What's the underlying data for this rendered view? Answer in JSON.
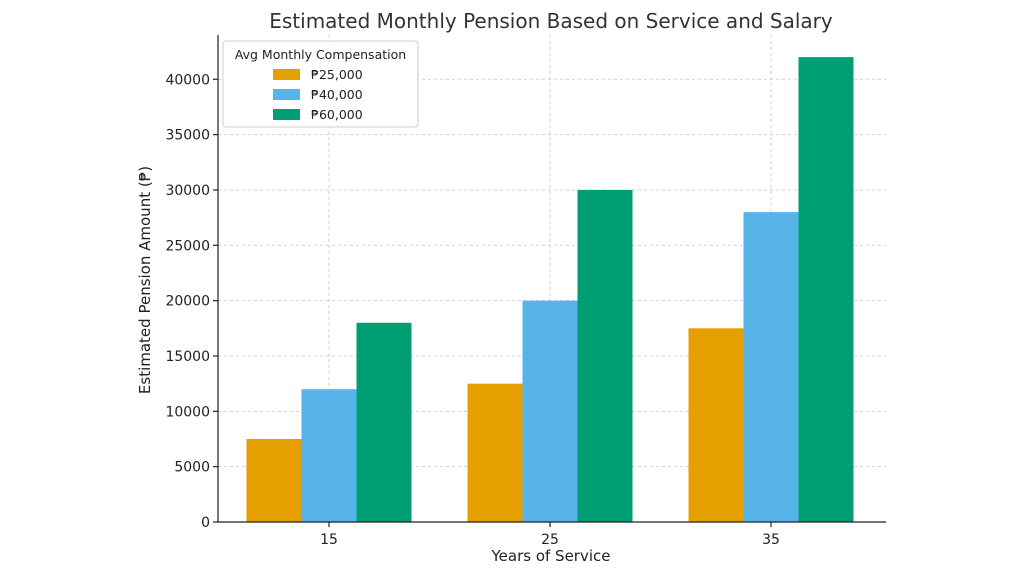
{
  "chart_data": {
    "type": "bar",
    "title": "Estimated Monthly Pension Based on Service and Salary",
    "xlabel": "Years of Service",
    "ylabel": "Estimated Pension Amount (₱)",
    "categories": [
      "15",
      "25",
      "35"
    ],
    "series": [
      {
        "name": "₱25,000",
        "color": "#E69F00",
        "values": [
          7500,
          12500,
          17500
        ]
      },
      {
        "name": "₱40,000",
        "color": "#56B4E9",
        "values": [
          12000,
          20000,
          28000
        ]
      },
      {
        "name": "₱60,000",
        "color": "#009E73",
        "values": [
          18000,
          30000,
          42000
        ]
      }
    ],
    "ylim": [
      0,
      44000
    ],
    "yticks": [
      0,
      5000,
      10000,
      15000,
      20000,
      25000,
      30000,
      35000,
      40000
    ],
    "grid": true,
    "legend": {
      "title": "Avg Monthly Compensation",
      "placement": "top-left"
    }
  }
}
